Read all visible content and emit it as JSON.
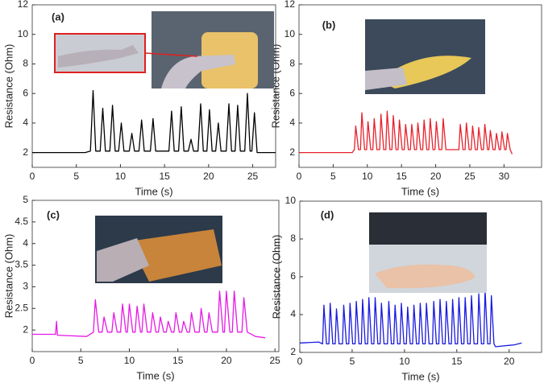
{
  "chart_data": [
    {
      "type": "line",
      "panel_label": "(a)",
      "xlabel": "Time (s)",
      "ylabel": "Resistance (Ohm)",
      "color": "#000000",
      "xlim": [
        0,
        27.6
      ],
      "ylim": [
        1,
        12
      ],
      "xticks": [
        0,
        5,
        10,
        15,
        20,
        25
      ],
      "yticks": [
        2,
        4,
        6,
        8,
        10,
        12
      ],
      "x": [
        0,
        6.0,
        6.6,
        6.9,
        7.2,
        7.7,
        8.0,
        8.3,
        8.8,
        9.1,
        9.4,
        9.8,
        10.1,
        10.4,
        11.0,
        11.3,
        11.6,
        12.1,
        12.4,
        12.7,
        13.4,
        13.7,
        14.0,
        15.5,
        15.8,
        16.1,
        16.6,
        16.9,
        17.2,
        17.7,
        18.0,
        18.3,
        18.8,
        19.1,
        19.4,
        19.8,
        20.1,
        20.4,
        20.8,
        21.1,
        21.4,
        22.0,
        22.3,
        22.6,
        23.0,
        23.3,
        23.6,
        24.1,
        24.4,
        24.7,
        24.9,
        25.2,
        25.5,
        27.6
      ],
      "values": [
        2.0,
        2.0,
        2.1,
        6.2,
        2.1,
        2.1,
        5.0,
        2.1,
        2.1,
        5.2,
        2.1,
        2.1,
        4.0,
        2.1,
        2.1,
        3.3,
        2.1,
        2.1,
        4.2,
        2.1,
        2.1,
        4.3,
        2.1,
        2.1,
        4.8,
        2.1,
        2.1,
        5.1,
        2.1,
        2.1,
        2.9,
        2.1,
        2.1,
        5.3,
        2.1,
        2.1,
        4.9,
        2.1,
        2.1,
        4.0,
        2.1,
        2.1,
        5.3,
        2.1,
        2.1,
        5.2,
        2.1,
        2.1,
        6.0,
        2.1,
        2.1,
        4.7,
        2.0,
        2.0
      ]
    },
    {
      "type": "line",
      "panel_label": "(b)",
      "xlabel": "Time (s)",
      "ylabel": "Resistance (Ohm)",
      "color": "#e8202a",
      "xlim": [
        0,
        35.5
      ],
      "ylim": [
        1,
        12
      ],
      "xticks": [
        0,
        5,
        10,
        15,
        20,
        25,
        30
      ],
      "yticks": [
        2,
        4,
        6,
        8,
        10,
        12
      ],
      "x": [
        0,
        7.8,
        8.1,
        8.3,
        8.7,
        9.0,
        9.2,
        9.6,
        9.9,
        10.1,
        10.5,
        10.8,
        11.0,
        11.4,
        11.8,
        12.0,
        12.4,
        12.7,
        12.9,
        13.3,
        13.6,
        13.8,
        14.2,
        14.5,
        14.7,
        15.1,
        15.4,
        15.6,
        16.0,
        16.3,
        16.5,
        16.9,
        17.2,
        17.4,
        17.8,
        18.1,
        18.3,
        18.7,
        19.0,
        19.2,
        19.6,
        19.9,
        20.1,
        20.5,
        20.9,
        21.1,
        21.5,
        23.4,
        23.6,
        24.0,
        24.3,
        24.5,
        24.9,
        25.2,
        25.4,
        25.8,
        26.1,
        26.3,
        26.7,
        27.0,
        27.2,
        27.6,
        27.8,
        28.0,
        28.4,
        28.7,
        28.9,
        29.3,
        29.5,
        29.7,
        30.1,
        30.3,
        30.5,
        30.9,
        31.2
      ],
      "values": [
        2.0,
        2.0,
        2.2,
        3.8,
        2.2,
        2.2,
        4.7,
        2.2,
        2.2,
        4.1,
        2.2,
        2.2,
        4.3,
        2.2,
        2.2,
        4.6,
        2.2,
        2.2,
        4.8,
        2.2,
        2.2,
        4.5,
        2.2,
        2.2,
        4.2,
        2.2,
        2.2,
        3.9,
        2.2,
        2.2,
        3.9,
        2.2,
        2.2,
        4.0,
        2.2,
        2.2,
        4.2,
        2.2,
        2.2,
        4.3,
        2.2,
        2.2,
        4.1,
        2.2,
        2.2,
        4.3,
        2.2,
        2.2,
        3.9,
        2.2,
        2.2,
        4.0,
        2.2,
        2.2,
        3.8,
        2.2,
        2.2,
        3.7,
        2.2,
        2.2,
        3.9,
        2.2,
        2.2,
        3.5,
        2.2,
        2.2,
        3.3,
        2.2,
        2.2,
        3.4,
        2.2,
        2.2,
        3.3,
        2.2,
        1.9
      ]
    },
    {
      "type": "line",
      "panel_label": "(c)",
      "xlabel": "Time (s)",
      "ylabel": "Resistance (Ohm)",
      "color": "#e619e6",
      "xlim": [
        0,
        25.4
      ],
      "ylim": [
        1.5,
        5
      ],
      "xticks": [
        0,
        5,
        10,
        15,
        20,
        25
      ],
      "yticks": [
        2,
        2.5,
        3,
        3.5,
        4,
        4.5,
        5
      ],
      "x": [
        0,
        2.4,
        2.5,
        2.6,
        5.6,
        6.3,
        6.5,
        6.85,
        7.2,
        7.4,
        7.75,
        8.2,
        8.4,
        8.75,
        9.1,
        9.3,
        9.65,
        9.8,
        10.0,
        10.35,
        10.6,
        10.8,
        11.15,
        11.3,
        11.5,
        11.85,
        12.2,
        12.4,
        12.75,
        13.0,
        13.2,
        13.55,
        13.8,
        14.0,
        14.35,
        14.6,
        14.8,
        15.15,
        15.4,
        15.6,
        15.95,
        16.2,
        16.4,
        16.75,
        17.2,
        17.4,
        17.75,
        18.0,
        18.2,
        18.55,
        19.1,
        19.3,
        19.65,
        19.8,
        20.0,
        20.35,
        20.6,
        20.8,
        21.15,
        21.6,
        21.8,
        22.15,
        23.0,
        24.0
      ],
      "values": [
        1.9,
        1.9,
        2.2,
        1.88,
        1.85,
        1.95,
        2.7,
        1.95,
        1.95,
        2.3,
        1.95,
        1.95,
        2.4,
        1.95,
        1.95,
        2.6,
        1.95,
        1.95,
        2.6,
        1.95,
        1.95,
        2.55,
        1.95,
        1.95,
        2.6,
        1.95,
        1.95,
        2.4,
        1.95,
        1.95,
        2.3,
        1.95,
        1.95,
        2.2,
        1.95,
        1.95,
        2.4,
        1.95,
        1.95,
        2.2,
        1.95,
        1.95,
        2.4,
        1.95,
        1.95,
        2.5,
        1.95,
        1.95,
        2.4,
        1.95,
        1.95,
        2.9,
        1.95,
        1.95,
        2.9,
        1.95,
        1.95,
        2.9,
        1.95,
        1.95,
        2.75,
        1.95,
        1.85,
        1.82
      ]
    },
    {
      "type": "line",
      "panel_label": "(d)",
      "xlabel": "Time (s)",
      "ylabel": "Resistance (Ohm)",
      "color": "#1a1ae0",
      "xlim": [
        0,
        23.1
      ],
      "ylim": [
        2,
        10
      ],
      "xticks": [
        0,
        5,
        10,
        15,
        20
      ],
      "yticks": [
        2,
        4,
        6,
        8,
        10
      ],
      "x": [
        0,
        1.8,
        2.18,
        2.3,
        2.55,
        2.78,
        2.9,
        3.15,
        3.38,
        3.5,
        3.75,
        4.08,
        4.2,
        4.45,
        4.68,
        4.8,
        5.05,
        5.28,
        5.4,
        5.65,
        5.88,
        6.0,
        6.25,
        6.48,
        6.6,
        6.85,
        7.08,
        7.2,
        7.45,
        7.68,
        7.8,
        8.05,
        8.38,
        8.5,
        8.75,
        8.98,
        9.1,
        9.35,
        9.58,
        9.7,
        9.95,
        10.18,
        10.3,
        10.55,
        10.78,
        10.9,
        11.15,
        11.38,
        11.5,
        11.75,
        11.98,
        12.1,
        12.35,
        12.68,
        12.8,
        13.05,
        13.28,
        13.4,
        13.65,
        13.88,
        14.0,
        14.25,
        14.48,
        14.6,
        14.85,
        15.08,
        15.2,
        15.45,
        15.68,
        15.8,
        16.05,
        16.28,
        16.4,
        16.65,
        16.98,
        17.1,
        17.35,
        17.58,
        17.7,
        17.95,
        18.18,
        18.3,
        18.55,
        18.7,
        20.5,
        21.2
      ],
      "values": [
        2.5,
        2.55,
        2.45,
        4.5,
        2.45,
        2.45,
        4.6,
        2.45,
        2.45,
        4.3,
        2.45,
        2.45,
        4.5,
        2.45,
        2.45,
        4.6,
        2.45,
        2.45,
        4.7,
        2.45,
        2.45,
        4.8,
        2.45,
        2.45,
        4.9,
        2.45,
        2.45,
        4.9,
        2.45,
        2.45,
        4.6,
        2.45,
        2.45,
        4.7,
        2.45,
        2.45,
        4.5,
        2.45,
        2.45,
        4.6,
        2.45,
        2.45,
        4.4,
        2.45,
        2.45,
        4.5,
        2.45,
        2.45,
        4.6,
        2.45,
        2.45,
        4.6,
        2.45,
        2.45,
        4.7,
        2.45,
        2.45,
        4.8,
        2.45,
        2.45,
        4.7,
        2.45,
        2.45,
        4.8,
        2.45,
        2.45,
        4.9,
        2.45,
        2.45,
        4.9,
        2.45,
        2.45,
        5.0,
        2.45,
        2.45,
        5.1,
        2.45,
        2.45,
        5.3,
        2.45,
        2.45,
        5.0,
        2.45,
        2.3,
        2.4,
        2.5
      ]
    }
  ]
}
